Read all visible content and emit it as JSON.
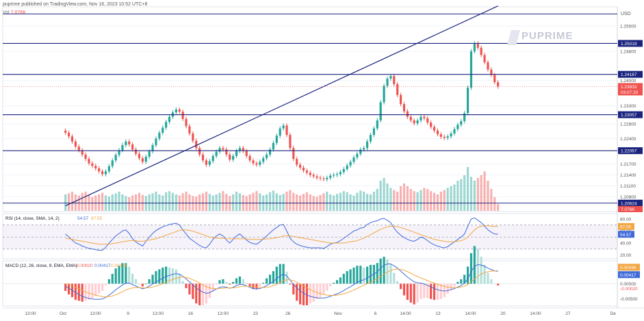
{
  "header": {
    "published": "puprime published on TradingView.com, Nov 16, 2023 10:52 UTC+8",
    "vol_label": "Vol",
    "vol_value": "7.076K"
  },
  "watermark": {
    "text": "PUPRIME"
  },
  "currency": "USD",
  "colors": {
    "up": "#26a69a",
    "down": "#ef5350",
    "level_line": "#1a237e",
    "trend_line": "#1a237e",
    "rsi": "#3f6ad8",
    "rsi_sma": "#f2a742",
    "macd": "#3f6ad8",
    "signal": "#f2a742",
    "price_tag": "#ef5350"
  },
  "chart_data": [
    {
      "type": "candlestick",
      "title": "",
      "y_axis_ticks": [
        "1.25500",
        "1.24800",
        "1.24000",
        "1.23300",
        "1.22800",
        "1.22400",
        "1.21700",
        "1.21400",
        "1.21100",
        "1.20800"
      ],
      "ylim": [
        1.2045,
        1.2595
      ],
      "horizontal_levels": [
        {
          "value": 1.2583,
          "label": ""
        },
        {
          "value": 1.25019,
          "label": "1.25019"
        },
        {
          "value": 1.24167,
          "label": "1.24167"
        },
        {
          "value": 1.23057,
          "label": "1.23057"
        },
        {
          "value": 1.22067,
          "label": "1.22067"
        },
        {
          "value": 1.20624,
          "label": "1.20624"
        }
      ],
      "trend_line": {
        "from": {
          "x": 24,
          "y": 1.2055
        },
        "to": {
          "x": 197,
          "y": 1.2605
        }
      },
      "last_price": {
        "value": "1.23833",
        "countdown": "03:07:20"
      },
      "volume_tag": "7.076K",
      "x_ticks": [
        {
          "x": 10,
          "label": "13:00"
        },
        {
          "x": 23,
          "label": "Oct"
        },
        {
          "x": 36,
          "label": "13:00"
        },
        {
          "x": 49,
          "label": "9"
        },
        {
          "x": 61,
          "label": "13:00"
        },
        {
          "x": 74,
          "label": "16"
        },
        {
          "x": 87,
          "label": "13:00"
        },
        {
          "x": 100,
          "label": "23"
        },
        {
          "x": 113,
          "label": "26"
        },
        {
          "x": 133,
          "label": "Nov"
        },
        {
          "x": 148,
          "label": "6"
        },
        {
          "x": 160,
          "label": "14:00"
        },
        {
          "x": 173,
          "label": "13"
        },
        {
          "x": 186,
          "label": "14:00"
        },
        {
          "x": 199,
          "label": "20"
        },
        {
          "x": 212,
          "label": "14:00"
        },
        {
          "x": 225,
          "label": "27"
        },
        {
          "x": 243,
          "label": "De"
        }
      ],
      "close": [
        1.2256,
        1.2246,
        1.2232,
        1.2218,
        1.2208,
        1.2196,
        1.2184,
        1.2172,
        1.2165,
        1.2158,
        1.215,
        1.2142,
        1.215,
        1.2164,
        1.218,
        1.2195,
        1.2208,
        1.2222,
        1.2232,
        1.2224,
        1.221,
        1.2198,
        1.2186,
        1.2176,
        1.219,
        1.2205,
        1.2222,
        1.224,
        1.2256,
        1.227,
        1.2286,
        1.23,
        1.2312,
        1.232,
        1.2314,
        1.2294,
        1.2274,
        1.2254,
        1.2234,
        1.2214,
        1.2196,
        1.218,
        1.2168,
        1.2178,
        1.2192,
        1.2204,
        1.2214,
        1.221,
        1.2196,
        1.2182,
        1.2192,
        1.2206,
        1.2214,
        1.2206,
        1.2192,
        1.218,
        1.2172,
        1.2168,
        1.2176,
        1.2186,
        1.2196,
        1.221,
        1.2228,
        1.2248,
        1.2268,
        1.2276,
        1.225,
        1.2214,
        1.2184,
        1.2168,
        1.216,
        1.2152,
        1.2146,
        1.214,
        1.2136,
        1.2132,
        1.213,
        1.2128,
        1.2132,
        1.2138,
        1.214,
        1.2142,
        1.2148,
        1.2156,
        1.2166,
        1.2176,
        1.2188,
        1.2198,
        1.221,
        1.2214,
        1.2232,
        1.225,
        1.2268,
        1.229,
        1.234,
        1.2385,
        1.2405,
        1.2412,
        1.239,
        1.236,
        1.2335,
        1.2315,
        1.23,
        1.229,
        1.2282,
        1.229,
        1.23,
        1.2296,
        1.2284,
        1.2272,
        1.2262,
        1.2252,
        1.2245,
        1.2242,
        1.2246,
        1.2254,
        1.2266,
        1.2278,
        1.2288,
        1.231,
        1.238,
        1.248,
        1.2502,
        1.249,
        1.247,
        1.245,
        1.243,
        1.2415,
        1.2395,
        1.2383
      ],
      "volume": [
        0.3,
        0.32,
        0.35,
        0.3,
        0.28,
        0.33,
        0.35,
        0.3,
        0.25,
        0.28,
        0.3,
        0.33,
        0.28,
        0.26,
        0.3,
        0.32,
        0.35,
        0.3,
        0.27,
        0.25,
        0.28,
        0.3,
        0.33,
        0.29,
        0.27,
        0.3,
        0.32,
        0.35,
        0.3,
        0.28,
        0.34,
        0.36,
        0.33,
        0.3,
        0.28,
        0.32,
        0.35,
        0.3,
        0.27,
        0.26,
        0.3,
        0.32,
        0.35,
        0.31,
        0.28,
        0.3,
        0.33,
        0.36,
        0.31,
        0.27,
        0.3,
        0.35,
        0.32,
        0.29,
        0.27,
        0.3,
        0.33,
        0.36,
        0.32,
        0.28,
        0.3,
        0.34,
        0.37,
        0.32,
        0.29,
        0.31,
        0.35,
        0.38,
        0.33,
        0.3,
        0.28,
        0.31,
        0.34,
        0.3,
        0.27,
        0.26,
        0.29,
        0.32,
        0.35,
        0.3,
        0.28,
        0.31,
        0.33,
        0.36,
        0.34,
        0.3,
        0.28,
        0.33,
        0.37,
        0.35,
        0.31,
        0.3,
        0.35,
        0.4,
        0.55,
        0.6,
        0.5,
        0.42,
        0.38,
        0.35,
        0.45,
        0.5,
        0.45,
        0.4,
        0.36,
        0.34,
        0.38,
        0.42,
        0.4,
        0.36,
        0.33,
        0.3,
        0.35,
        0.38,
        0.42,
        0.45,
        0.48,
        0.55,
        0.58,
        0.65,
        0.8,
        0.62,
        0.55,
        0.6,
        0.65,
        0.72,
        0.55,
        0.4,
        0.25,
        0.12
      ]
    },
    {
      "type": "line",
      "title": "RSI (14, close, SMA, 14, 2)",
      "legend_values": [
        "54.57",
        "67.55"
      ],
      "y_axis_ticks": [
        "80.00",
        "60.00",
        "40.00",
        "20.00"
      ],
      "ylim": [
        15,
        88
      ],
      "levels": [
        70,
        50,
        30
      ],
      "series": [
        {
          "values": [
            55,
            50,
            45,
            40,
            38,
            35,
            33,
            31,
            30,
            29,
            28,
            28,
            33,
            40,
            46,
            52,
            56,
            60,
            62,
            56,
            47,
            42,
            38,
            35,
            43,
            50,
            56,
            61,
            64,
            67,
            69,
            71,
            72,
            73,
            70,
            62,
            55,
            48,
            44,
            40,
            36,
            33,
            32,
            38,
            46,
            52,
            55,
            52,
            45,
            40,
            46,
            52,
            55,
            50,
            45,
            41,
            39,
            38,
            42,
            47,
            52,
            57,
            62,
            66,
            70,
            71,
            60,
            48,
            42,
            38,
            36,
            34,
            33,
            32,
            32,
            32,
            32,
            31,
            34,
            38,
            40,
            41,
            44,
            48,
            52,
            56,
            60,
            62,
            65,
            66,
            71,
            74,
            76,
            77,
            80,
            81,
            78,
            74,
            65,
            58,
            53,
            49,
            46,
            44,
            43,
            46,
            50,
            48,
            44,
            40,
            37,
            35,
            33,
            32,
            34,
            38,
            42,
            46,
            50,
            55,
            68,
            80,
            82,
            78,
            74,
            68,
            62,
            58,
            55,
            54.57
          ]
        },
        {
          "values": [
            48,
            47,
            46,
            45,
            44,
            43,
            42,
            41,
            40,
            39,
            38,
            38,
            38,
            38,
            39,
            40,
            41,
            42,
            43,
            44,
            44,
            44,
            43,
            43,
            44,
            45,
            46,
            47,
            49,
            51,
            53,
            55,
            57,
            59,
            61,
            62,
            62,
            61,
            60,
            58,
            56,
            54,
            52,
            50,
            49,
            48,
            48,
            48,
            47,
            47,
            47,
            47,
            47,
            47,
            47,
            46,
            46,
            46,
            46,
            46,
            47,
            47,
            48,
            49,
            50,
            52,
            52,
            52,
            51,
            50,
            49,
            48,
            47,
            46,
            45,
            44,
            43,
            42,
            41,
            40,
            40,
            40,
            40,
            40,
            41,
            42,
            43,
            44,
            46,
            48,
            51,
            54,
            57,
            60,
            63,
            65,
            67,
            68,
            68,
            67,
            66,
            64,
            62,
            60,
            58,
            56,
            54,
            52,
            50,
            48,
            46,
            45,
            44,
            43,
            42,
            42,
            42,
            43,
            44,
            46,
            50,
            56,
            62,
            66,
            68,
            69,
            69,
            68,
            68,
            67.55
          ]
        }
      ]
    },
    {
      "type": "bar+line",
      "title": "MACD (12, 26, close, 9, EMA, EMA)",
      "legend_values": [
        "-0.00020",
        "0.00417",
        "0.00436"
      ],
      "y_axis_ticks": [
        "0.00000",
        "-0.00500"
      ],
      "ylim": [
        -0.0072,
        0.0072
      ],
      "series": [
        {
          "name": "MACD",
          "values": [
            -0.0008,
            -0.0015,
            -0.0022,
            -0.003,
            -0.0036,
            -0.0042,
            -0.0046,
            -0.0049,
            -0.0051,
            -0.0052,
            -0.0052,
            -0.0051,
            -0.0046,
            -0.0038,
            -0.003,
            -0.002,
            -0.0012,
            -0.0004,
            0.0002,
            0.0002,
            -0.0003,
            -0.0008,
            -0.0013,
            -0.0017,
            -0.0014,
            -0.0008,
            -0.0001,
            0.0006,
            0.0012,
            0.0018,
            0.0024,
            0.0028,
            0.0031,
            0.0034,
            0.0032,
            0.0025,
            0.0016,
            0.0006,
            -0.0004,
            -0.0014,
            -0.0022,
            -0.0028,
            -0.0032,
            -0.003,
            -0.0024,
            -0.0018,
            -0.0012,
            -0.001,
            -0.0012,
            -0.0015,
            -0.0012,
            -0.0006,
            -0.0002,
            -0.0003,
            -0.0007,
            -0.0012,
            -0.0016,
            -0.0018,
            -0.0016,
            -0.0012,
            -0.0006,
            0.0,
            0.0008,
            0.0017,
            0.0026,
            0.0032,
            0.0026,
            0.0012,
            -0.0002,
            -0.0014,
            -0.0024,
            -0.0032,
            -0.0038,
            -0.0042,
            -0.0045,
            -0.0047,
            -0.0048,
            -0.0048,
            -0.0046,
            -0.0042,
            -0.0038,
            -0.0034,
            -0.0029,
            -0.0023,
            -0.0016,
            -0.001,
            -0.0003,
            0.0004,
            0.001,
            0.0013,
            0.0019,
            0.0026,
            0.0032,
            0.004,
            0.0052,
            0.0062,
            0.0066,
            0.0066,
            0.006,
            0.0052,
            0.0042,
            0.0032,
            0.0022,
            0.0014,
            0.0006,
            0.0003,
            0.0002,
            -0.0001,
            -0.0006,
            -0.0011,
            -0.0016,
            -0.002,
            -0.0023,
            -0.0024,
            -0.0023,
            -0.002,
            -0.0016,
            -0.0011,
            -0.0006,
            0.0002,
            0.0016,
            0.004,
            0.0058,
            0.0064,
            0.0062,
            0.0058,
            0.0052,
            0.0047,
            0.0043,
            0.00417
          ]
        },
        {
          "name": "Signal",
          "values": [
            0.0,
            -0.0003,
            -0.0007,
            -0.0012,
            -0.0017,
            -0.0022,
            -0.0027,
            -0.0031,
            -0.0035,
            -0.0038,
            -0.0041,
            -0.0043,
            -0.0044,
            -0.0043,
            -0.0041,
            -0.0037,
            -0.0032,
            -0.0027,
            -0.0021,
            -0.0017,
            -0.0014,
            -0.0013,
            -0.0013,
            -0.0014,
            -0.0014,
            -0.0013,
            -0.0011,
            -0.0008,
            -0.0004,
            0.0,
            0.0005,
            0.001,
            0.0014,
            0.0018,
            0.0021,
            0.0022,
            0.0021,
            0.0018,
            0.0013,
            0.0008,
            0.0002,
            -0.0004,
            -0.001,
            -0.0014,
            -0.0016,
            -0.0017,
            -0.0016,
            -0.0015,
            -0.0014,
            -0.0014,
            -0.0014,
            -0.0012,
            -0.001,
            -0.0008,
            -0.0008,
            -0.0009,
            -0.001,
            -0.0012,
            -0.0013,
            -0.0013,
            -0.0012,
            -0.001,
            -0.0006,
            -0.0002,
            0.0004,
            0.001,
            0.0013,
            0.0013,
            0.001,
            0.0005,
            -0.0001,
            -0.0008,
            -0.0014,
            -0.002,
            -0.0025,
            -0.003,
            -0.0033,
            -0.0036,
            -0.0038,
            -0.0039,
            -0.0039,
            -0.0038,
            -0.0036,
            -0.0034,
            -0.003,
            -0.0026,
            -0.0021,
            -0.0016,
            -0.001,
            -0.0005,
            0.0,
            0.0005,
            0.0011,
            0.0017,
            0.0024,
            0.0032,
            0.0039,
            0.0044,
            0.0048,
            0.0049,
            0.0048,
            0.0045,
            0.004,
            0.0035,
            0.0029,
            0.0024,
            0.0019,
            0.0015,
            0.001,
            0.0006,
            0.0002,
            -0.0002,
            -0.0006,
            -0.0009,
            -0.0012,
            -0.0013,
            -0.0013,
            -0.0013,
            -0.0011,
            -0.0008,
            -0.0003,
            0.0006,
            0.0016,
            0.0025,
            0.0032,
            0.0037,
            0.004,
            0.0042,
            0.0043,
            0.00436
          ]
        }
      ]
    }
  ]
}
